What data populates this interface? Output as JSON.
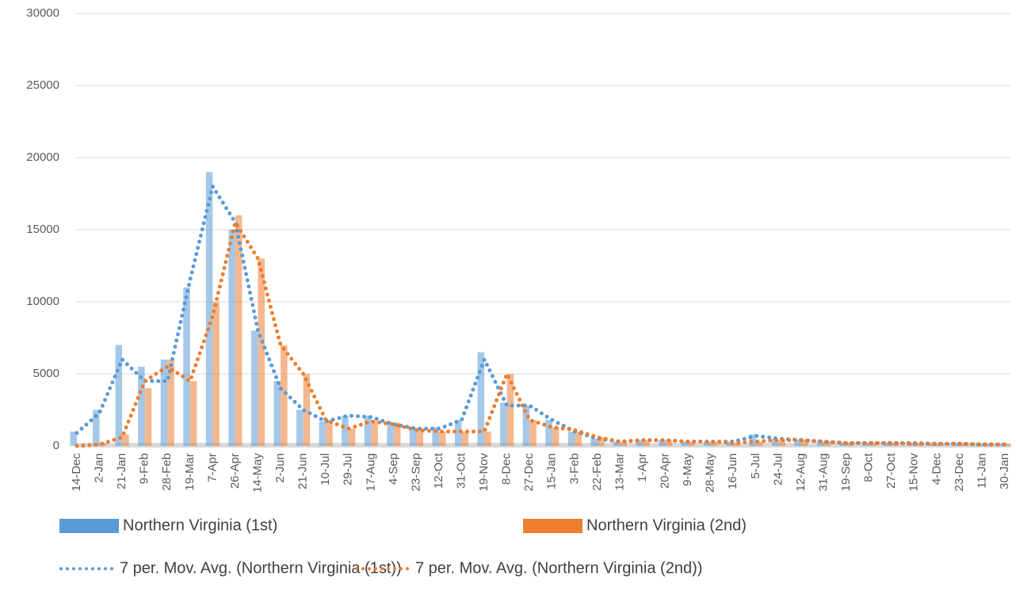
{
  "chart_data": {
    "type": "bar",
    "categories": [
      "14-Dec",
      "2-Jan",
      "21-Jan",
      "9-Feb",
      "28-Feb",
      "19-Mar",
      "7-Apr",
      "26-Apr",
      "14-May",
      "2-Jun",
      "21-Jun",
      "10-Jul",
      "29-Jul",
      "17-Aug",
      "4-Sep",
      "23-Sep",
      "12-Oct",
      "31-Oct",
      "19-Nov",
      "8-Dec",
      "27-Dec",
      "15-Jan",
      "3-Feb",
      "22-Feb",
      "13-Mar",
      "1-Apr",
      "20-Apr",
      "9-May",
      "28-May",
      "16-Jun",
      "5-Jul",
      "24-Jul",
      "12-Aug",
      "31-Aug",
      "19-Sep",
      "8-Oct",
      "27-Oct",
      "15-Nov",
      "4-Dec",
      "23-Dec",
      "11-Jan",
      "30-Jan"
    ],
    "series": [
      {
        "name": "Northern Virginia (1st)",
        "type": "bar",
        "color": "#5b9bd5",
        "values": [
          1000,
          2500,
          7000,
          5500,
          6000,
          11000,
          19000,
          15000,
          8000,
          4500,
          2500,
          1700,
          2100,
          2100,
          1600,
          1200,
          1300,
          1800,
          6500,
          3000,
          2800,
          1800,
          1000,
          500,
          300,
          400,
          400,
          300,
          300,
          300,
          800,
          500,
          400,
          300,
          200,
          200,
          200,
          200,
          150,
          150,
          100,
          100
        ]
      },
      {
        "name": "Northern Virginia (2nd)",
        "type": "bar",
        "color": "#ed7d31",
        "values": [
          0,
          200,
          800,
          4000,
          6000,
          4500,
          10000,
          16000,
          13000,
          7000,
          5000,
          1800,
          1200,
          1700,
          1600,
          1200,
          1000,
          1000,
          1000,
          5000,
          1800,
          1300,
          1000,
          600,
          300,
          400,
          400,
          300,
          300,
          200,
          300,
          400,
          400,
          300,
          200,
          200,
          200,
          150,
          150,
          150,
          100,
          100
        ]
      },
      {
        "name": "7 per. Mov. Avg. (Northern Virginia (1st))",
        "type": "line",
        "color": "#5b9bd5",
        "values": [
          900,
          2300,
          6000,
          4500,
          4500,
          11500,
          18000,
          15500,
          8000,
          4000,
          2500,
          1700,
          2100,
          2000,
          1500,
          1200,
          1200,
          1800,
          6000,
          2800,
          2800,
          1800,
          1000,
          500,
          300,
          400,
          400,
          300,
          300,
          300,
          700,
          500,
          400,
          300,
          200,
          200,
          200,
          200,
          150,
          150,
          100,
          100
        ]
      },
      {
        "name": "7 per. Mov. Avg. (Northern Virginia (2nd))",
        "type": "line",
        "color": "#ed7d31",
        "values": [
          0,
          100,
          600,
          4500,
          5500,
          4500,
          9000,
          15500,
          13000,
          7000,
          5000,
          1800,
          1200,
          1700,
          1500,
          1100,
          1000,
          1000,
          1000,
          5000,
          1800,
          1300,
          1100,
          600,
          300,
          400,
          400,
          300,
          300,
          200,
          300,
          400,
          400,
          300,
          200,
          200,
          200,
          150,
          150,
          150,
          100,
          100
        ]
      }
    ],
    "ylim": [
      0,
      30000
    ],
    "yticks": [
      0,
      5000,
      10000,
      15000,
      20000,
      25000,
      30000
    ],
    "grid": true
  }
}
